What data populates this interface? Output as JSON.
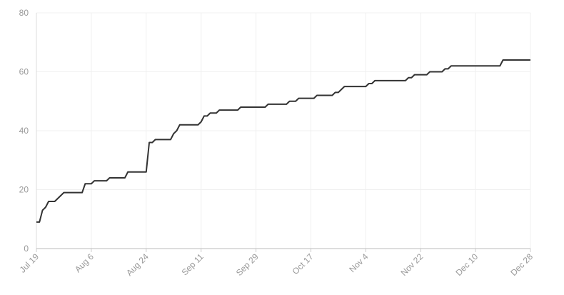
{
  "chart_data": {
    "type": "line",
    "x": [
      0,
      1,
      2,
      3,
      4,
      5,
      6,
      7,
      9,
      15,
      16,
      18,
      19,
      23,
      24,
      29,
      30,
      36,
      37,
      38,
      39,
      44,
      45,
      46,
      47,
      53,
      54,
      55,
      56,
      57,
      59,
      60,
      66,
      67,
      75,
      76,
      82,
      83,
      85,
      86,
      91,
      92,
      97,
      98,
      99,
      101,
      108,
      109,
      110,
      111,
      121,
      122,
      123,
      124,
      128,
      129,
      133,
      134,
      135,
      136,
      152,
      153,
      162
    ],
    "series": [
      {
        "color": "#333333",
        "values": [
          9,
          9,
          13,
          14,
          16,
          16,
          16,
          17,
          19,
          19,
          22,
          22,
          23,
          23,
          24,
          24,
          26,
          26,
          36,
          36,
          37,
          37,
          39,
          40,
          42,
          42,
          43,
          45,
          45,
          46,
          46,
          47,
          47,
          48,
          48,
          49,
          49,
          50,
          50,
          51,
          51,
          52,
          52,
          53,
          53,
          55,
          55,
          56,
          56,
          57,
          57,
          58,
          58,
          59,
          59,
          60,
          60,
          61,
          61,
          62,
          62,
          64,
          64
        ]
      }
    ],
    "xlim": [
      0,
      162
    ],
    "xticks": [
      {
        "value": 0,
        "label": "Jul 19"
      },
      {
        "value": 18,
        "label": "Aug 6"
      },
      {
        "value": 36,
        "label": "Aug 24"
      },
      {
        "value": 54,
        "label": "Sep 11"
      },
      {
        "value": 72,
        "label": "Sep 29"
      },
      {
        "value": 90,
        "label": "Oct 17"
      },
      {
        "value": 108,
        "label": "Nov 4"
      },
      {
        "value": 126,
        "label": "Nov 22"
      },
      {
        "value": 144,
        "label": "Dec 10"
      },
      {
        "value": 162,
        "label": "Dec 28"
      }
    ],
    "ylim": [
      0,
      80
    ],
    "yticks": [
      0,
      20,
      40,
      60,
      80
    ],
    "grid": true
  }
}
